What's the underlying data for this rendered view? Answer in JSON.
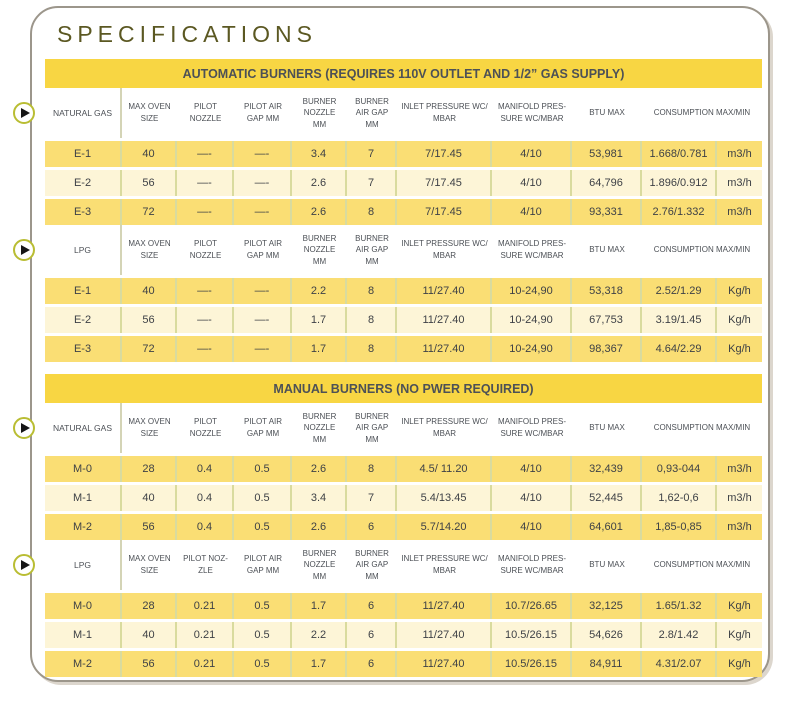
{
  "title": "SPECIFICATIONS",
  "colors": {
    "banner_bg": "#f8d643",
    "row_dark": "#fade74",
    "row_light": "#fdf5d7",
    "cell_divider": "#d9db9e",
    "frame_border": "#9c968b",
    "title_text": "#5b5822",
    "header_text": "#4c5056",
    "cell_text": "#3e4146",
    "play_ring": "#b9bd33"
  },
  "tables": [
    {
      "banner": "AUTOMATIC BURNERS (REQUIRES 110V OUTLET AND  1/2” GAS SUPPLY)",
      "sections": [
        {
          "label": "NATURAL GAS",
          "icon": "play-icon",
          "columns": [
            "MAX OVEN SIZE",
            "PILOT NOZZLE",
            "PILOT AIR GAP MM",
            "BURNER NOZZLE MM",
            "BURNER AIR GAP MM",
            "INLET PRESSURE WC/ MBAR",
            "MANIFOLD PRES- SURE WC/MBAR",
            "BTU MAX",
            "CONSUMPTION MAX/MIN"
          ],
          "rows": [
            [
              "E-1",
              "40",
              "—-",
              "—-",
              "3.4",
              "7",
              "7/17.45",
              "4/10",
              "53,981",
              "1.668/0.781",
              "m3/h"
            ],
            [
              "E-2",
              "56",
              "—-",
              "—-",
              "2.6",
              "7",
              "7/17.45",
              "4/10",
              "64,796",
              "1.896/0.912",
              "m3/h"
            ],
            [
              "E-3",
              "72",
              "—-",
              "—-",
              "2.6",
              "8",
              "7/17.45",
              "4/10",
              "93,331",
              "2.76/1.332",
              "m3/h"
            ]
          ]
        },
        {
          "label": "LPG",
          "icon": "play-icon",
          "columns": [
            "MAX OVEN SIZE",
            "PILOT NOZZLE",
            "PILOT AIR GAP MM",
            "BURNER NOZZLE MM",
            "BURNER AIR GAP MM",
            "INLET PRESSURE WC/ MBAR",
            "MANIFOLD PRES- SURE WC/MBAR",
            "BTU MAX",
            "CONSUMPTION MAX/MIN"
          ],
          "rows": [
            [
              "E-1",
              "40",
              "—-",
              "—-",
              "2.2",
              "8",
              "11/27.40",
              "10-24,90",
              "53,318",
              "2.52/1.29",
              "Kg/h"
            ],
            [
              "E-2",
              "56",
              "—-",
              "—-",
              "1.7",
              "8",
              "11/27.40",
              "10-24,90",
              "67,753",
              "3.19/1.45",
              "Kg/h"
            ],
            [
              "E-3",
              "72",
              "—-",
              "—-",
              "1.7",
              "8",
              "11/27.40",
              "10-24,90",
              "98,367",
              "4.64/2.29",
              "Kg/h"
            ]
          ]
        }
      ]
    },
    {
      "banner": "MANUAL BURNERS (NO PWER REQUIRED)",
      "sections": [
        {
          "label": "NATURAL GAS",
          "icon": "play-icon",
          "columns": [
            "MAX OVEN SIZE",
            "PILOT NOZZLE",
            "PILOT AIR GAP MM",
            "BURNER NOZZLE MM",
            "BURNER AIR GAP MM",
            "INLET PRESSURE WC/ MBAR",
            "MANIFOLD PRES- SURE WC/MBAR",
            "BTU MAX",
            "CONSUMPTION MAX/MIN"
          ],
          "rows": [
            [
              "M-0",
              "28",
              "0.4",
              "0.5",
              "2.6",
              "8",
              "4.5/ 11.20",
              "4/10",
              "32,439",
              "0,93-044",
              "m3/h"
            ],
            [
              "M-1",
              "40",
              "0.4",
              "0.5",
              "3.4",
              "7",
              "5.4/13.45",
              "4/10",
              "52,445",
              "1,62-0,6",
              "m3/h"
            ],
            [
              "M-2",
              "56",
              "0.4",
              "0.5",
              "2.6",
              "6",
              "5.7/14.20",
              "4/10",
              "64,601",
              "1,85-0,85",
              "m3/h"
            ]
          ]
        },
        {
          "label": "LPG",
          "icon": "play-icon",
          "columns": [
            "MAX OVEN SIZE",
            "PILOT NOZ- ZLE",
            "PILOT AIR GAP MM",
            "BURNER NOZZLE MM",
            "BURNER AIR GAP MM",
            "INLET PRESSURE WC/ MBAR",
            "MANIFOLD PRES- SURE WC/MBAR",
            "BTU MAX",
            "CONSUMPTION MAX/MIN"
          ],
          "rows": [
            [
              "M-0",
              "28",
              "0.21",
              "0.5",
              "1.7",
              "6",
              "11/27.40",
              "10.7/26.65",
              "32,125",
              "1.65/1.32",
              "Kg/h"
            ],
            [
              "M-1",
              "40",
              "0.21",
              "0.5",
              "2.2",
              "6",
              "11/27.40",
              "10.5/26.15",
              "54,626",
              "2.8/1.42",
              "Kg/h"
            ],
            [
              "M-2",
              "56",
              "0.21",
              "0.5",
              "1.7",
              "6",
              "11/27.40",
              "10.5/26.15",
              "84,911",
              "4.31/2.07",
              "Kg/h"
            ]
          ]
        }
      ]
    }
  ]
}
